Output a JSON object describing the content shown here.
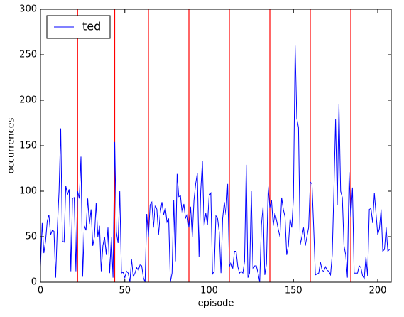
{
  "chart_data": {
    "type": "line",
    "xlabel": "episode",
    "ylabel": "occurrences",
    "x": [
      0,
      1,
      2,
      3,
      4,
      5,
      6,
      7,
      8,
      9,
      10,
      11,
      12,
      13,
      14,
      15,
      16,
      17,
      18,
      19,
      20,
      21,
      22,
      23,
      24,
      25,
      26,
      27,
      28,
      29,
      30,
      31,
      32,
      33,
      34,
      35,
      36,
      37,
      38,
      39,
      40,
      41,
      42,
      43,
      44,
      45,
      46,
      47,
      48,
      49,
      50,
      51,
      52,
      53,
      54,
      55,
      56,
      57,
      58,
      59,
      60,
      61,
      62,
      63,
      64,
      65,
      66,
      67,
      68,
      69,
      70,
      71,
      72,
      73,
      74,
      75,
      76,
      77,
      78,
      79,
      80,
      81,
      82,
      83,
      84,
      85,
      86,
      87,
      88,
      89,
      90,
      91,
      92,
      93,
      94,
      95,
      96,
      97,
      98,
      99,
      100,
      101,
      102,
      103,
      104,
      105,
      106,
      107,
      108,
      109,
      110,
      111,
      112,
      113,
      114,
      115,
      116,
      117,
      118,
      119,
      120,
      121,
      122,
      123,
      124,
      125,
      126,
      127,
      128,
      129,
      130,
      131,
      132,
      133,
      134,
      135,
      136,
      137,
      138,
      139,
      140,
      141,
      142,
      143,
      144,
      145,
      146,
      147,
      148,
      149,
      150,
      151,
      152,
      153,
      154,
      155,
      156,
      157,
      158,
      159,
      160,
      161,
      162,
      163,
      164,
      165,
      166,
      167,
      168,
      169,
      170,
      171,
      172,
      173,
      174,
      175,
      176,
      177,
      178,
      179,
      180,
      181,
      182,
      183,
      184,
      185,
      186,
      187,
      188,
      189,
      190,
      191,
      192,
      193,
      194,
      195,
      196,
      197,
      198,
      199,
      200,
      201,
      202,
      203,
      204,
      205,
      206,
      207
    ],
    "series": [
      {
        "name": "ted",
        "color": "#0000ff",
        "values": [
          17,
          65,
          32,
          45,
          67,
          74,
          52,
          57,
          56,
          5,
          60,
          100,
          169,
          45,
          44,
          106,
          96,
          102,
          12,
          92,
          93,
          12,
          100,
          92,
          138,
          6,
          62,
          57,
          92,
          64,
          80,
          40,
          50,
          87,
          50,
          62,
          12,
          40,
          50,
          30,
          60,
          10,
          50,
          5,
          154,
          55,
          43,
          100,
          10,
          11,
          5,
          12,
          10,
          0,
          25,
          6,
          10,
          16,
          13,
          19,
          18,
          5,
          0,
          75,
          50,
          85,
          88,
          60,
          85,
          80,
          52,
          76,
          88,
          74,
          82,
          66,
          70,
          0,
          10,
          90,
          23,
          119,
          94,
          95,
          76,
          86,
          70,
          75,
          60,
          83,
          50,
          90,
          108,
          120,
          28,
          100,
          133,
          62,
          76,
          63,
          95,
          98,
          9,
          12,
          73,
          70,
          55,
          10,
          70,
          88,
          74,
          108,
          17,
          22,
          15,
          34,
          34,
          17,
          10,
          12,
          10,
          23,
          129,
          5,
          10,
          100,
          14,
          18,
          18,
          10,
          0,
          63,
          83,
          8,
          20,
          105,
          82,
          90,
          62,
          76,
          68,
          58,
          50,
          93,
          80,
          72,
          30,
          40,
          70,
          60,
          93,
          260,
          180,
          170,
          41,
          50,
          60,
          40,
          50,
          60,
          110,
          108,
          60,
          8,
          9,
          10,
          22,
          13,
          12,
          17,
          13,
          12,
          8,
          30,
          100,
          179,
          85,
          196,
          100,
          93,
          40,
          30,
          5,
          121,
          72,
          104,
          10,
          10,
          10,
          18,
          16,
          7,
          4,
          28,
          7,
          80,
          81,
          65,
          98,
          75,
          52,
          59,
          80,
          34,
          36,
          60,
          34,
          36
        ]
      }
    ],
    "vlines": {
      "x": [
        22,
        44,
        64,
        88,
        112,
        136,
        160,
        184
      ],
      "color": "#ff0000"
    },
    "xlim": [
      0,
      208
    ],
    "ylim": [
      0,
      300
    ],
    "xticks": [
      0,
      50,
      100,
      150,
      200
    ],
    "yticks": [
      0,
      50,
      100,
      150,
      200,
      250,
      300
    ],
    "grid": false,
    "legend": "upper left"
  }
}
